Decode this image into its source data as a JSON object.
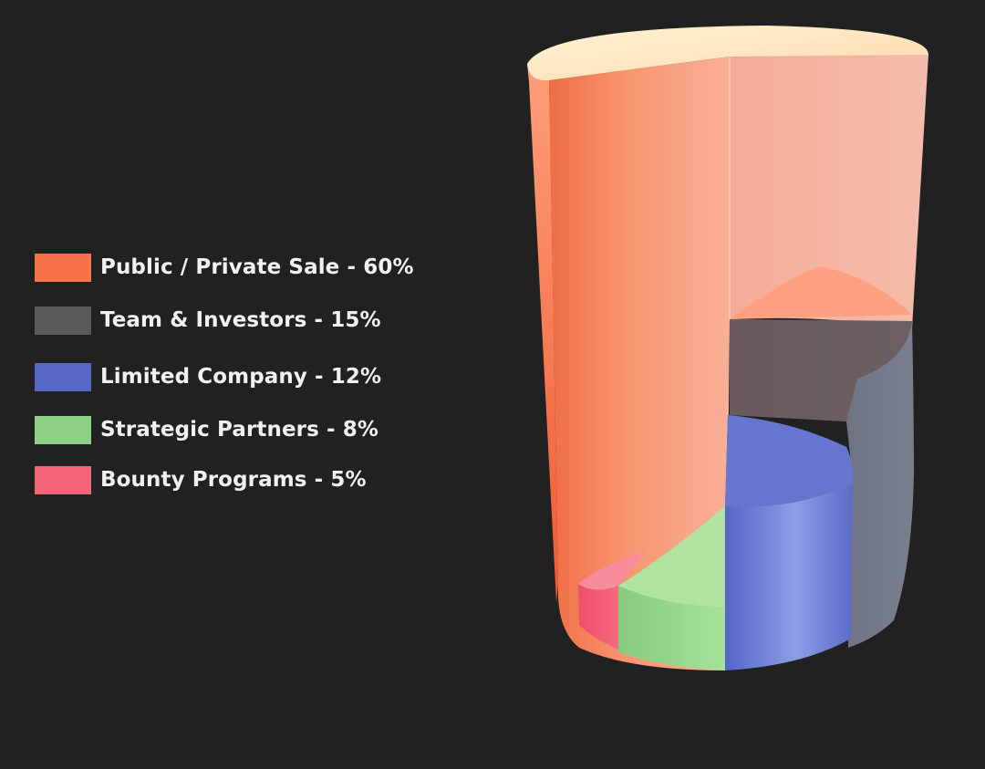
{
  "chart_data": {
    "type": "pie",
    "style": "3d-cylinder",
    "legend_position": "left",
    "categories": [
      "Public / Private Sale",
      "Team & Investors",
      "Limited Company",
      "Strategic Partners",
      "Bounty Programs"
    ],
    "values": [
      60,
      15,
      12,
      8,
      5
    ],
    "unit": "%",
    "colors": [
      "#f7744a",
      "#5a5a5a",
      "#5566c6",
      "#8fd187",
      "#f26478"
    ],
    "legend": [
      {
        "label": "Public / Private Sale - 60%",
        "color": "#f7744a"
      },
      {
        "label": "Team & Investors - 15%",
        "color": "#5a5a5a"
      },
      {
        "label": "Limited Company - 12%",
        "color": "#5566c6"
      },
      {
        "label": "Strategic Partners - 8%",
        "color": "#8fd187"
      },
      {
        "label": "Bounty Programs - 5%",
        "color": "#f26478"
      }
    ]
  }
}
